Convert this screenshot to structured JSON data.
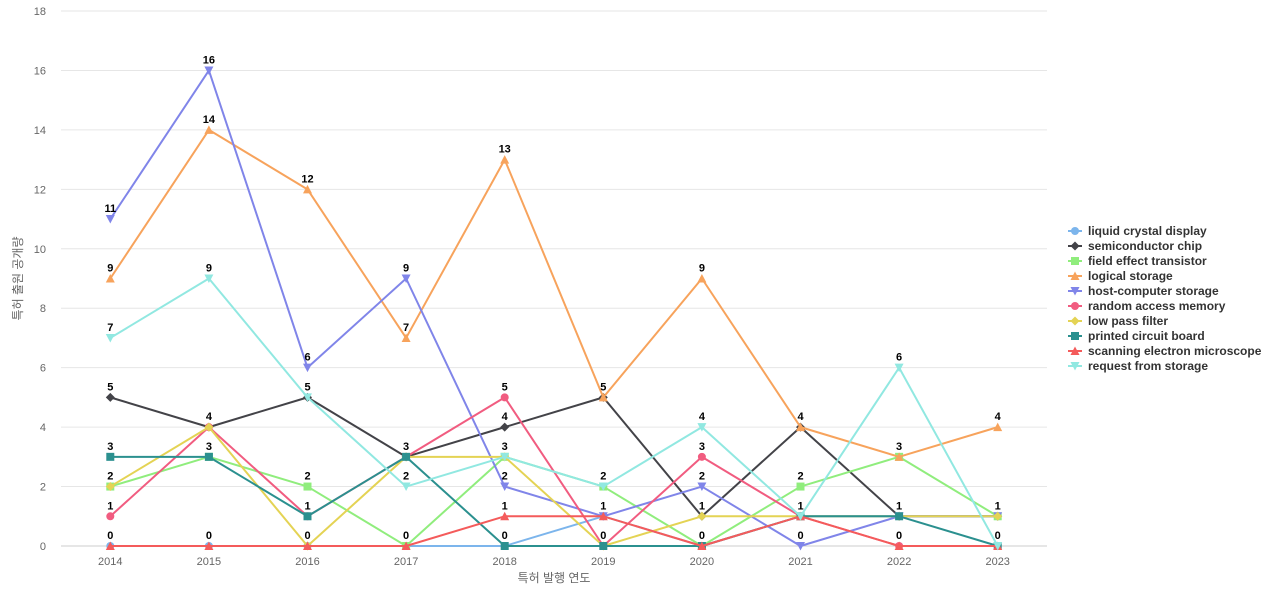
{
  "chart_data": {
    "type": "line",
    "title": "",
    "xlabel": "특허 발행 연도",
    "ylabel": "특허 출원 공개량",
    "x": [
      "2014",
      "2015",
      "2016",
      "2017",
      "2018",
      "2019",
      "2020",
      "2021",
      "2022",
      "2023"
    ],
    "ylim": [
      0,
      18
    ],
    "yticks": [
      0,
      2,
      4,
      6,
      8,
      10,
      12,
      14,
      16,
      18
    ],
    "grid": true,
    "legend_position": "right",
    "series": [
      {
        "name": "liquid crystal display",
        "color": "#7cb5ec",
        "marker": "circle",
        "values": [
          0,
          0,
          0,
          0,
          0,
          1,
          0,
          1,
          1,
          1
        ]
      },
      {
        "name": "semiconductor chip",
        "color": "#434348",
        "marker": "diamond",
        "values": [
          5,
          4,
          5,
          3,
          4,
          5,
          1,
          4,
          1,
          1
        ]
      },
      {
        "name": "field effect transistor",
        "color": "#90ed7d",
        "marker": "square",
        "values": [
          2,
          3,
          2,
          0,
          3,
          2,
          0,
          2,
          3,
          1
        ]
      },
      {
        "name": "logical storage",
        "color": "#f7a35c",
        "marker": "triangle",
        "values": [
          9,
          14,
          12,
          7,
          13,
          5,
          9,
          4,
          3,
          4
        ]
      },
      {
        "name": "host-computer storage",
        "color": "#8085e9",
        "marker": "triangle-down",
        "values": [
          11,
          16,
          6,
          9,
          2,
          1,
          2,
          0,
          1,
          1
        ]
      },
      {
        "name": "random access memory",
        "color": "#f15c80",
        "marker": "circle",
        "values": [
          1,
          4,
          1,
          3,
          5,
          0,
          3,
          1,
          0,
          0
        ]
      },
      {
        "name": "low pass filter",
        "color": "#e4d354",
        "marker": "diamond",
        "values": [
          2,
          4,
          0,
          3,
          3,
          0,
          1,
          1,
          1,
          1
        ]
      },
      {
        "name": "printed circuit board",
        "color": "#2b908f",
        "marker": "square",
        "values": [
          3,
          3,
          1,
          3,
          0,
          0,
          0,
          1,
          1,
          0
        ]
      },
      {
        "name": "scanning electron microscope",
        "color": "#f45b5b",
        "marker": "triangle",
        "values": [
          0,
          0,
          0,
          0,
          1,
          1,
          0,
          1,
          0,
          0
        ]
      },
      {
        "name": "request from storage",
        "color": "#91e8e1",
        "marker": "triangle-down",
        "values": [
          7,
          9,
          5,
          2,
          3,
          2,
          4,
          1,
          6,
          0
        ]
      }
    ],
    "data_labels": [
      {
        "series": "host-computer storage",
        "index": 0,
        "text": "11"
      },
      {
        "series": "logical storage",
        "index": 0,
        "text": "9"
      },
      {
        "series": "request from storage",
        "index": 0,
        "text": "7"
      },
      {
        "series": "semiconductor chip",
        "index": 0,
        "text": "5"
      },
      {
        "series": "printed circuit board",
        "index": 0,
        "text": "3"
      },
      {
        "series": "field effect transistor",
        "index": 0,
        "text": "2"
      },
      {
        "series": "random access memory",
        "index": 0,
        "text": "1"
      },
      {
        "series": "liquid crystal display",
        "index": 0,
        "text": "0"
      },
      {
        "series": "host-computer storage",
        "index": 1,
        "text": "16"
      },
      {
        "series": "logical storage",
        "index": 1,
        "text": "14"
      },
      {
        "series": "request from storage",
        "index": 1,
        "text": "9"
      },
      {
        "series": "random access memory",
        "index": 1,
        "text": "4"
      },
      {
        "series": "printed circuit board",
        "index": 1,
        "text": "3"
      },
      {
        "series": "liquid crystal display",
        "index": 1,
        "text": "0"
      },
      {
        "series": "logical storage",
        "index": 2,
        "text": "12"
      },
      {
        "series": "host-computer storage",
        "index": 2,
        "text": "6"
      },
      {
        "series": "semiconductor chip",
        "index": 2,
        "text": "5"
      },
      {
        "series": "field effect transistor",
        "index": 2,
        "text": "2"
      },
      {
        "series": "printed circuit board",
        "index": 2,
        "text": "1"
      },
      {
        "series": "liquid crystal display",
        "index": 2,
        "text": "0"
      },
      {
        "series": "host-computer storage",
        "index": 3,
        "text": "9"
      },
      {
        "series": "logical storage",
        "index": 3,
        "text": "7"
      },
      {
        "series": "printed circuit board",
        "index": 3,
        "text": "3"
      },
      {
        "series": "request from storage",
        "index": 3,
        "text": "2"
      },
      {
        "series": "liquid crystal display",
        "index": 3,
        "text": "0"
      },
      {
        "series": "logical storage",
        "index": 4,
        "text": "13"
      },
      {
        "series": "random access memory",
        "index": 4,
        "text": "5"
      },
      {
        "series": "semiconductor chip",
        "index": 4,
        "text": "4"
      },
      {
        "series": "request from storage",
        "index": 4,
        "text": "3"
      },
      {
        "series": "host-computer storage",
        "index": 4,
        "text": "2"
      },
      {
        "series": "scanning electron microscope",
        "index": 4,
        "text": "1"
      },
      {
        "series": "printed circuit board",
        "index": 4,
        "text": "0"
      },
      {
        "series": "semiconductor chip",
        "index": 5,
        "text": "5"
      },
      {
        "series": "request from storage",
        "index": 5,
        "text": "2"
      },
      {
        "series": "liquid crystal display",
        "index": 5,
        "text": "1"
      },
      {
        "series": "printed circuit board",
        "index": 5,
        "text": "0"
      },
      {
        "series": "logical storage",
        "index": 6,
        "text": "9"
      },
      {
        "series": "request from storage",
        "index": 6,
        "text": "4"
      },
      {
        "series": "random access memory",
        "index": 6,
        "text": "3"
      },
      {
        "series": "host-computer storage",
        "index": 6,
        "text": "2"
      },
      {
        "series": "low pass filter",
        "index": 6,
        "text": "1"
      },
      {
        "series": "liquid crystal display",
        "index": 6,
        "text": "0"
      },
      {
        "series": "logical storage",
        "index": 7,
        "text": "4"
      },
      {
        "series": "field effect transistor",
        "index": 7,
        "text": "2"
      },
      {
        "series": "liquid crystal display",
        "index": 7,
        "text": "1"
      },
      {
        "series": "host-computer storage",
        "index": 7,
        "text": "0"
      },
      {
        "series": "request from storage",
        "index": 8,
        "text": "6"
      },
      {
        "series": "logical storage",
        "index": 8,
        "text": "3"
      },
      {
        "series": "printed circuit board",
        "index": 8,
        "text": "1"
      },
      {
        "series": "random access memory",
        "index": 8,
        "text": "0"
      },
      {
        "series": "logical storage",
        "index": 9,
        "text": "4"
      },
      {
        "series": "liquid crystal display",
        "index": 9,
        "text": "1"
      },
      {
        "series": "request from storage",
        "index": 9,
        "text": "0"
      }
    ]
  }
}
